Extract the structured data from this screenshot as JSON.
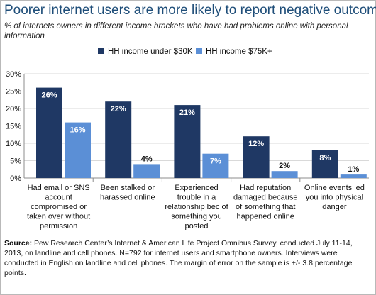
{
  "header": {
    "title": "Poorer internet users are more likely to report negative outcomes",
    "subtitle": "% of internets owners in different income brackets who have had problems online with personal information"
  },
  "footer": {
    "source_label": "Source:",
    "source_text": " Pew Research Center’s Internet & American Life Project Omnibus Survey, conducted July 11-14, 2013, on landline and cell phones. N=792 for internet users and smartphone owners. Interviews were conducted in English on landline and cell phones. The margin of error on the sample is +/- 3.8 percentage points."
  },
  "chart_data": {
    "type": "bar",
    "categories": [
      [
        "Had email or SNS",
        "account",
        "compromised or",
        "taken over without",
        "permission"
      ],
      [
        "Been stalked or",
        "harassed online"
      ],
      [
        "Experienced",
        "trouble in a",
        "relationship bec of",
        "something you",
        "posted"
      ],
      [
        "Had reputation",
        "damaged because",
        "of something that",
        "happened online"
      ],
      [
        "Online events led",
        "you into physical",
        "danger"
      ]
    ],
    "series": [
      {
        "name": "HH income under $30K",
        "values": [
          26,
          22,
          21,
          12,
          8
        ],
        "labels": [
          "26%",
          "22%",
          "21%",
          "12%",
          "8%"
        ],
        "color": "#1f3864",
        "label_color": "#ffffff"
      },
      {
        "name": "HH income $75K+",
        "values": [
          16,
          4,
          7,
          2,
          1
        ],
        "labels": [
          "16%",
          "4%",
          "7%",
          "2%",
          "1%"
        ],
        "color": "#5b8fd6",
        "label_color": "#ffffff"
      }
    ],
    "ylim": [
      0,
      30
    ],
    "yticks": [
      "0%",
      "5%",
      "10%",
      "15%",
      "20%",
      "25%",
      "30%"
    ],
    "ytick_values": [
      0,
      5,
      10,
      15,
      20,
      25,
      30
    ],
    "legend_position": "top",
    "grid": true
  }
}
